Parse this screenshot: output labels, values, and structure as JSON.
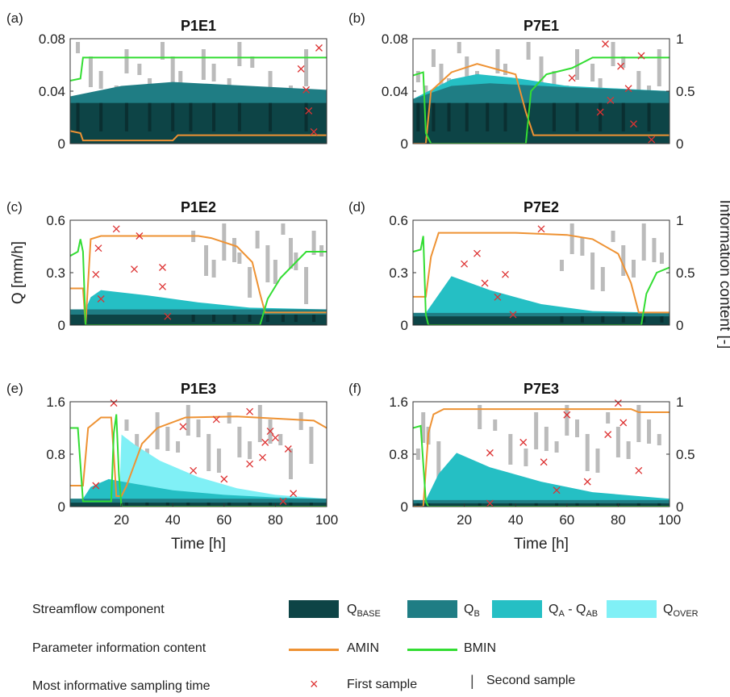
{
  "colors": {
    "q_base": "#0d4446",
    "q_b": "#1f7d84",
    "q_a_ab": "#25bfc4",
    "q_over": "#80f0f6",
    "amin": "#ee9233",
    "bmin": "#33dd33",
    "first_sample": "#dd3333",
    "second_sample": "#bbbbbb"
  },
  "labels": {
    "ylabel_left": "Q [mm/h]",
    "ylabel_right": "Information content [-]",
    "xlabel": "Time [h]"
  },
  "legend": {
    "row1_label": "Streamflow component",
    "row2_label": "Parameter information content",
    "row3_label": "Most informative sampling time",
    "q_base": {
      "main": "Q",
      "sub": "BASE"
    },
    "q_b": {
      "main": "Q",
      "sub": "B"
    },
    "q_a_ab": {
      "main": "Q",
      "sub1": "A",
      "mid": " - Q",
      "sub2": "AB"
    },
    "q_over": {
      "main": "Q",
      "sub": "OVER"
    },
    "amin": "AMIN",
    "bmin": "BMIN",
    "first_sample": "First sample",
    "second_sample": "Second sample"
  },
  "chart_data": [
    {
      "type": "area",
      "panel": "(a)",
      "title": "P1E1",
      "xlim": [
        0,
        100
      ],
      "ylim": [
        0,
        0.08
      ],
      "yticks": [
        0,
        0.04,
        0.08
      ],
      "ytick_labels": [
        "0",
        "0.04",
        "0.08"
      ],
      "right_ylim": [
        0,
        1
      ],
      "right_ticks": [],
      "xticks": [],
      "q_base": 0.031,
      "q_b": [
        [
          0,
          0.036
        ],
        [
          20,
          0.044
        ],
        [
          40,
          0.047
        ],
        [
          60,
          0.045
        ],
        [
          80,
          0.043
        ],
        [
          100,
          0.041
        ]
      ],
      "q_a_ab": [],
      "q_over": [],
      "amin": [
        [
          0,
          0.12
        ],
        [
          4,
          0.1
        ],
        [
          5,
          0.03
        ],
        [
          40,
          0.03
        ],
        [
          42,
          0.08
        ],
        [
          100,
          0.08
        ]
      ],
      "bmin": [
        [
          0,
          0.6
        ],
        [
          4,
          0.62
        ],
        [
          5,
          0.82
        ],
        [
          100,
          0.82
        ]
      ],
      "first_samples": [
        [
          90,
          0.057
        ],
        [
          92,
          0.041
        ],
        [
          93,
          0.025
        ],
        [
          95,
          0.009
        ],
        [
          97,
          0.073
        ]
      ],
      "second_samples_x": [
        3,
        8,
        12,
        18,
        22,
        27,
        31,
        36,
        40,
        43,
        47,
        52,
        56,
        62,
        66,
        71,
        78,
        86,
        92
      ]
    },
    {
      "type": "area",
      "panel": "(b)",
      "title": "P7E1",
      "xlim": [
        0,
        100
      ],
      "ylim": [
        0,
        0.08
      ],
      "yticks": [
        0,
        0.04,
        0.08
      ],
      "ytick_labels": [
        "0",
        "0.04",
        "0.08"
      ],
      "right_ylim": [
        0,
        1
      ],
      "right_ticks": [
        0,
        0.5,
        1
      ],
      "right_tick_labels": [
        "0",
        "0.5",
        "1"
      ],
      "xticks": [],
      "q_base": 0.031,
      "q_b": [
        [
          0,
          0.034
        ],
        [
          15,
          0.044
        ],
        [
          30,
          0.046
        ],
        [
          60,
          0.043
        ],
        [
          100,
          0.04
        ]
      ],
      "q_a_ab": [
        [
          0,
          0.034
        ],
        [
          15,
          0.049
        ],
        [
          25,
          0.053
        ],
        [
          40,
          0.05
        ],
        [
          60,
          0.044
        ],
        [
          100,
          0.04
        ]
      ],
      "q_over": [],
      "amin": [
        [
          0,
          0.0
        ],
        [
          5,
          0.0
        ],
        [
          7,
          0.5
        ],
        [
          15,
          0.68
        ],
        [
          25,
          0.76
        ],
        [
          40,
          0.66
        ],
        [
          44,
          0.3
        ],
        [
          47,
          0.08
        ],
        [
          60,
          0.08
        ],
        [
          100,
          0.08
        ]
      ],
      "bmin": [
        [
          0,
          0.65
        ],
        [
          4,
          0.68
        ],
        [
          5,
          0.1
        ],
        [
          7,
          0.0
        ],
        [
          44,
          0.0
        ],
        [
          46,
          0.5
        ],
        [
          52,
          0.66
        ],
        [
          62,
          0.72
        ],
        [
          70,
          0.82
        ],
        [
          100,
          0.82
        ]
      ],
      "first_samples": [
        [
          62,
          0.05
        ],
        [
          73,
          0.024
        ],
        [
          77,
          0.033
        ],
        [
          81,
          0.059
        ],
        [
          84,
          0.042
        ],
        [
          86,
          0.015
        ],
        [
          89,
          0.067
        ],
        [
          93,
          0.003
        ],
        [
          75,
          0.076
        ]
      ],
      "second_samples_x": [
        2,
        5,
        8,
        11,
        14,
        18,
        21,
        25,
        29,
        33,
        36,
        40,
        45,
        50,
        55,
        60,
        64,
        70,
        73,
        78,
        82,
        88,
        92,
        96
      ]
    },
    {
      "type": "area",
      "panel": "(c)",
      "title": "P1E2",
      "xlim": [
        0,
        100
      ],
      "ylim": [
        0,
        0.6
      ],
      "yticks": [
        0,
        0.3,
        0.6
      ],
      "ytick_labels": [
        "0",
        "0.3",
        "0.6"
      ],
      "right_ylim": [
        0,
        1
      ],
      "right_ticks": [],
      "xticks": [],
      "q_base": 0.06,
      "q_b": [
        [
          0,
          0.09
        ],
        [
          20,
          0.09
        ],
        [
          100,
          0.09
        ]
      ],
      "q_a_ab": [
        [
          0,
          0.09
        ],
        [
          6,
          0.09
        ],
        [
          8,
          0.16
        ],
        [
          12,
          0.2
        ],
        [
          30,
          0.17
        ],
        [
          50,
          0.13
        ],
        [
          70,
          0.1
        ],
        [
          100,
          0.09
        ]
      ],
      "q_over": [],
      "amin": [
        [
          0,
          0.35
        ],
        [
          5,
          0.35
        ],
        [
          6,
          0.0
        ],
        [
          8,
          0.82
        ],
        [
          12,
          0.85
        ],
        [
          50,
          0.85
        ],
        [
          55,
          0.83
        ],
        [
          65,
          0.75
        ],
        [
          71,
          0.6
        ],
        [
          74,
          0.3
        ],
        [
          76,
          0.12
        ],
        [
          100,
          0.12
        ]
      ],
      "bmin": [
        [
          0,
          0.66
        ],
        [
          3,
          0.7
        ],
        [
          4,
          0.82
        ],
        [
          5,
          0.7
        ],
        [
          6,
          0.0
        ],
        [
          74,
          0.0
        ],
        [
          77,
          0.25
        ],
        [
          82,
          0.45
        ],
        [
          88,
          0.6
        ],
        [
          92,
          0.7
        ],
        [
          100,
          0.7
        ]
      ],
      "first_samples": [
        [
          11,
          0.44
        ],
        [
          10,
          0.29
        ],
        [
          12,
          0.15
        ],
        [
          18,
          0.55
        ],
        [
          27,
          0.51
        ],
        [
          36,
          0.33
        ],
        [
          25,
          0.32
        ],
        [
          38,
          0.05
        ],
        [
          36,
          0.22
        ]
      ],
      "second_samples_x": [
        48,
        53,
        56,
        60,
        64,
        66,
        70,
        73,
        77,
        80,
        83,
        86,
        88,
        92,
        95,
        98
      ]
    },
    {
      "type": "area",
      "panel": "(d)",
      "title": "P7E2",
      "xlim": [
        0,
        100
      ],
      "ylim": [
        0,
        0.6
      ],
      "yticks": [
        0,
        0.3,
        0.6
      ],
      "ytick_labels": [
        "0",
        "0.3",
        "0.6"
      ],
      "right_ylim": [
        0,
        1
      ],
      "right_ticks": [
        0,
        0.5,
        1
      ],
      "right_tick_labels": [
        "0",
        "0.5",
        "1"
      ],
      "xticks": [],
      "q_base": 0.05,
      "q_b": [
        [
          0,
          0.07
        ],
        [
          100,
          0.07
        ]
      ],
      "q_a_ab": [
        [
          0,
          0.07
        ],
        [
          5,
          0.07
        ],
        [
          15,
          0.28
        ],
        [
          30,
          0.2
        ],
        [
          50,
          0.12
        ],
        [
          70,
          0.08
        ],
        [
          100,
          0.07
        ]
      ],
      "q_over": [],
      "amin": [
        [
          0,
          0.27
        ],
        [
          5,
          0.27
        ],
        [
          7,
          0.65
        ],
        [
          10,
          0.88
        ],
        [
          40,
          0.88
        ],
        [
          60,
          0.86
        ],
        [
          70,
          0.82
        ],
        [
          80,
          0.68
        ],
        [
          85,
          0.4
        ],
        [
          88,
          0.12
        ],
        [
          100,
          0.12
        ]
      ],
      "bmin": [
        [
          0,
          0.7
        ],
        [
          3,
          0.72
        ],
        [
          4,
          0.85
        ],
        [
          5,
          0.1
        ],
        [
          6,
          0.0
        ],
        [
          89,
          0.0
        ],
        [
          91,
          0.3
        ],
        [
          95,
          0.5
        ],
        [
          100,
          0.55
        ]
      ],
      "first_samples": [
        [
          20,
          0.35
        ],
        [
          25,
          0.41
        ],
        [
          28,
          0.24
        ],
        [
          33,
          0.16
        ],
        [
          36,
          0.29
        ],
        [
          39,
          0.06
        ],
        [
          50,
          0.55
        ]
      ],
      "second_samples_x": [
        58,
        62,
        66,
        70,
        74,
        78,
        82,
        86,
        90,
        94,
        97
      ]
    },
    {
      "type": "area",
      "panel": "(e)",
      "title": "P1E3",
      "xlim": [
        0,
        100
      ],
      "ylim": [
        0,
        1.6
      ],
      "yticks": [
        0,
        0.8,
        1.6
      ],
      "ytick_labels": [
        "0",
        "0.8",
        "1.6"
      ],
      "right_ylim": [
        0,
        1
      ],
      "right_ticks": [],
      "xticks": [
        20,
        40,
        60,
        80,
        100
      ],
      "xtick_labels": [
        "20",
        "40",
        "60",
        "80",
        "100"
      ],
      "q_base": 0.06,
      "q_b": [
        [
          0,
          0.12
        ],
        [
          100,
          0.12
        ]
      ],
      "q_a_ab": [
        [
          0,
          0.12
        ],
        [
          5,
          0.12
        ],
        [
          8,
          0.3
        ],
        [
          15,
          0.42
        ],
        [
          25,
          0.35
        ],
        [
          40,
          0.25
        ],
        [
          60,
          0.18
        ],
        [
          80,
          0.14
        ],
        [
          100,
          0.12
        ]
      ],
      "q_over": [
        [
          19,
          0.0
        ],
        [
          20,
          1.1
        ],
        [
          25,
          0.95
        ],
        [
          35,
          0.7
        ],
        [
          50,
          0.45
        ],
        [
          65,
          0.28
        ],
        [
          80,
          0.18
        ],
        [
          100,
          0.12
        ]
      ],
      "amin": [
        [
          0,
          0.2
        ],
        [
          5,
          0.2
        ],
        [
          7,
          0.75
        ],
        [
          12,
          0.85
        ],
        [
          16,
          0.85
        ],
        [
          17,
          0.5
        ],
        [
          18,
          0.1
        ],
        [
          20,
          0.1
        ],
        [
          22,
          0.2
        ],
        [
          28,
          0.6
        ],
        [
          34,
          0.75
        ],
        [
          45,
          0.85
        ],
        [
          65,
          0.86
        ],
        [
          95,
          0.82
        ],
        [
          100,
          0.75
        ]
      ],
      "bmin": [
        [
          0,
          0.75
        ],
        [
          3,
          0.75
        ],
        [
          5,
          0.05
        ],
        [
          16,
          0.05
        ],
        [
          17,
          0.7
        ],
        [
          18,
          0.88
        ],
        [
          19,
          0.3
        ],
        [
          20,
          0.0
        ],
        [
          100,
          0.0
        ]
      ],
      "first_samples": [
        [
          10,
          0.32
        ],
        [
          17,
          1.58
        ],
        [
          44,
          1.22
        ],
        [
          48,
          0.55
        ],
        [
          57,
          1.33
        ],
        [
          60,
          0.42
        ],
        [
          70,
          1.45
        ],
        [
          70,
          0.65
        ],
        [
          75,
          0.75
        ],
        [
          76,
          0.98
        ],
        [
          78,
          1.15
        ],
        [
          80,
          1.05
        ],
        [
          83,
          0.08
        ],
        [
          85,
          0.88
        ],
        [
          87,
          0.2
        ]
      ],
      "second_samples_x": [
        22,
        26,
        30,
        34,
        38,
        42,
        46,
        50,
        54,
        58,
        62,
        66,
        70,
        74,
        78,
        82,
        86,
        90,
        94
      ]
    },
    {
      "type": "area",
      "panel": "(f)",
      "title": "P7E3",
      "xlim": [
        0,
        100
      ],
      "ylim": [
        0,
        1.6
      ],
      "yticks": [
        0,
        0.8,
        1.6
      ],
      "ytick_labels": [
        "0",
        "0.8",
        "1.6"
      ],
      "right_ylim": [
        0,
        1
      ],
      "right_ticks": [
        0,
        0.5,
        1
      ],
      "right_tick_labels": [
        "0",
        "0.5",
        "1"
      ],
      "xticks": [
        20,
        40,
        60,
        80,
        100
      ],
      "xtick_labels": [
        "20",
        "40",
        "60",
        "80",
        "100"
      ],
      "q_base": 0.05,
      "q_b": [
        [
          0,
          0.1
        ],
        [
          100,
          0.1
        ]
      ],
      "q_a_ab": [
        [
          0,
          0.1
        ],
        [
          5,
          0.1
        ],
        [
          10,
          0.5
        ],
        [
          17,
          0.82
        ],
        [
          30,
          0.6
        ],
        [
          50,
          0.38
        ],
        [
          70,
          0.22
        ],
        [
          100,
          0.12
        ]
      ],
      "q_over": [],
      "amin": [
        [
          0,
          0.0
        ],
        [
          4,
          0.0
        ],
        [
          6,
          0.7
        ],
        [
          8,
          0.88
        ],
        [
          12,
          0.93
        ],
        [
          60,
          0.93
        ],
        [
          85,
          0.93
        ],
        [
          88,
          0.9
        ],
        [
          100,
          0.9
        ]
      ],
      "bmin": [
        [
          0,
          0.75
        ],
        [
          3,
          0.77
        ],
        [
          5,
          0.05
        ],
        [
          6,
          0.0
        ],
        [
          100,
          0.0
        ]
      ],
      "first_samples": [
        [
          30,
          0.05
        ],
        [
          30,
          0.82
        ],
        [
          43,
          0.98
        ],
        [
          51,
          0.68
        ],
        [
          56,
          0.25
        ],
        [
          60,
          1.4
        ],
        [
          68,
          0.38
        ],
        [
          76,
          1.1
        ],
        [
          80,
          1.58
        ],
        [
          82,
          1.28
        ],
        [
          88,
          0.55
        ]
      ],
      "second_samples_x": [
        2,
        4,
        6,
        10,
        26,
        32,
        38,
        44,
        48,
        52,
        56,
        60,
        64,
        68,
        72,
        76,
        80,
        84,
        88,
        92,
        96
      ]
    }
  ]
}
